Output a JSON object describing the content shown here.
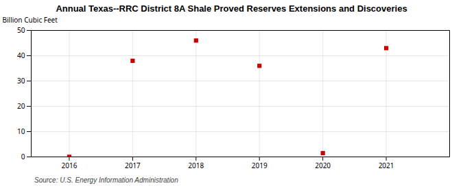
{
  "chart_data": {
    "type": "scatter",
    "title": "Annual Texas--RRC District 8A Shale Proved Reserves Extensions and Discoveries",
    "ylabel": "Billion Cubic Feet",
    "source": "Source: U.S. Energy Information Administration",
    "x": [
      2016,
      2017,
      2018,
      2019,
      2020,
      2021
    ],
    "values": [
      0.05,
      38.0,
      46.0,
      36.0,
      1.5,
      43.0
    ],
    "xlim": [
      2015.4,
      2022.0
    ],
    "xticks": [
      2016,
      2017,
      2018,
      2019,
      2020,
      2021
    ],
    "ylim": [
      0,
      50
    ],
    "yticks": [
      0,
      10,
      20,
      30,
      40,
      50
    ],
    "color": "#cc0000",
    "marker": "square",
    "grid": true
  }
}
